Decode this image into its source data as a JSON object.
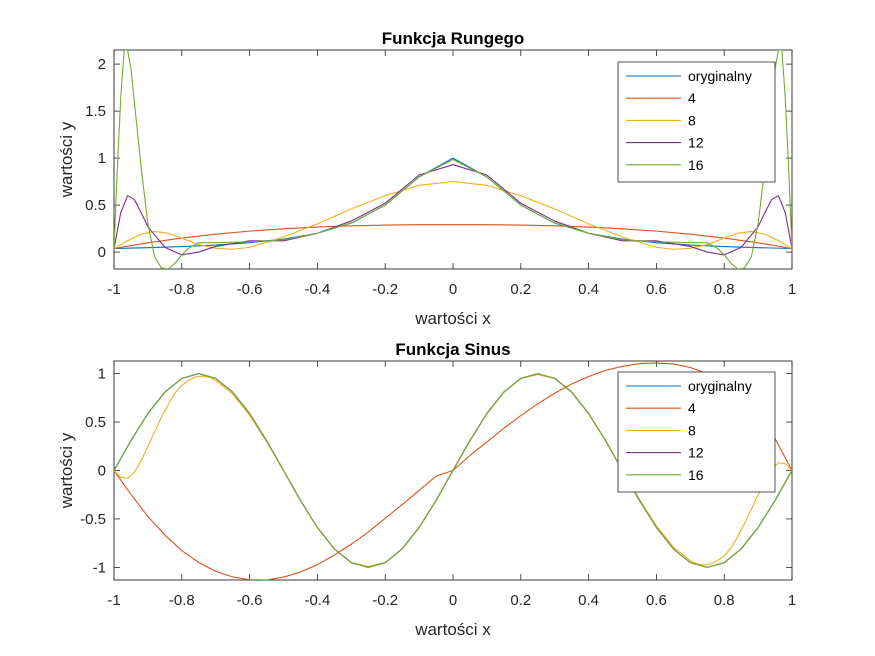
{
  "chart_data": [
    {
      "type": "line",
      "title": "Funkcja Rungego",
      "xlabel": "wartości x",
      "ylabel": "wartości y",
      "xlim": [
        -1,
        1
      ],
      "ylim": [
        -0.18,
        2.15
      ],
      "xticks": [
        -1,
        -0.8,
        -0.6,
        -0.4,
        -0.2,
        0,
        0.2,
        0.4,
        0.6,
        0.8,
        1
      ],
      "xtick_labels": [
        "-1",
        "-0.8",
        "-0.6",
        "-0.4",
        "-0.2",
        "0",
        "0.2",
        "0.4",
        "0.6",
        "0.8",
        "1"
      ],
      "yticks": [
        0,
        0.5,
        1,
        1.5,
        2
      ],
      "ytick_labels": [
        "0",
        "0.5",
        "1",
        "1.5",
        "2"
      ],
      "grid": false,
      "legend_position": "top-right",
      "series": [
        {
          "name": "oryginalny",
          "color": "#0072BD",
          "x": [
            -1,
            -0.9,
            -0.8,
            -0.7,
            -0.6,
            -0.5,
            -0.4,
            -0.3,
            -0.2,
            -0.1,
            0,
            0.1,
            0.2,
            0.3,
            0.4,
            0.5,
            0.6,
            0.7,
            0.8,
            0.9,
            1
          ],
          "y": [
            0.038,
            0.047,
            0.059,
            0.075,
            0.1,
            0.138,
            0.2,
            0.308,
            0.5,
            0.8,
            1.0,
            0.8,
            0.5,
            0.308,
            0.2,
            0.138,
            0.1,
            0.075,
            0.059,
            0.047,
            0.038
          ]
        },
        {
          "name": "4",
          "color": "#D95319",
          "x": [
            -1,
            -0.9,
            -0.8,
            -0.7,
            -0.6,
            -0.5,
            -0.4,
            -0.3,
            -0.2,
            -0.1,
            0,
            0.1,
            0.2,
            0.3,
            0.4,
            0.5,
            0.6,
            0.7,
            0.8,
            0.9,
            1
          ],
          "y": [
            0.038,
            0.099,
            0.149,
            0.19,
            0.223,
            0.248,
            0.266,
            0.279,
            0.287,
            0.291,
            0.292,
            0.291,
            0.287,
            0.279,
            0.266,
            0.248,
            0.223,
            0.19,
            0.149,
            0.099,
            0.038
          ]
        },
        {
          "name": "8",
          "color": "#EDB120",
          "x": [
            -1,
            -0.96,
            -0.92,
            -0.88,
            -0.84,
            -0.8,
            -0.75,
            -0.7,
            -0.65,
            -0.6,
            -0.5,
            -0.4,
            -0.3,
            -0.2,
            -0.1,
            0,
            0.1,
            0.2,
            0.3,
            0.4,
            0.5,
            0.6,
            0.65,
            0.7,
            0.75,
            0.8,
            0.84,
            0.88,
            0.92,
            0.96,
            1
          ],
          "y": [
            0.038,
            0.12,
            0.19,
            0.22,
            0.2,
            0.15,
            0.08,
            0.04,
            0.03,
            0.05,
            0.16,
            0.3,
            0.46,
            0.6,
            0.71,
            0.75,
            0.71,
            0.6,
            0.46,
            0.3,
            0.16,
            0.05,
            0.03,
            0.04,
            0.08,
            0.15,
            0.2,
            0.22,
            0.19,
            0.12,
            0.038
          ]
        },
        {
          "name": "12",
          "color": "#7E2F8E",
          "x": [
            -1,
            -0.98,
            -0.96,
            -0.94,
            -0.92,
            -0.9,
            -0.85,
            -0.8,
            -0.75,
            -0.7,
            -0.6,
            -0.5,
            -0.4,
            -0.3,
            -0.2,
            -0.1,
            0,
            0.1,
            0.2,
            0.3,
            0.4,
            0.5,
            0.6,
            0.7,
            0.75,
            0.8,
            0.85,
            0.9,
            0.92,
            0.94,
            0.96,
            0.98,
            1
          ],
          "y": [
            0.038,
            0.42,
            0.6,
            0.56,
            0.42,
            0.27,
            0.05,
            -0.03,
            0.0,
            0.06,
            0.12,
            0.12,
            0.2,
            0.33,
            0.52,
            0.82,
            0.93,
            0.82,
            0.52,
            0.33,
            0.2,
            0.12,
            0.12,
            0.06,
            0.0,
            -0.03,
            0.05,
            0.27,
            0.42,
            0.56,
            0.6,
            0.42,
            0.038
          ]
        },
        {
          "name": "16",
          "color": "#77AC30",
          "x": [
            -1,
            -0.99,
            -0.98,
            -0.97,
            -0.96,
            -0.95,
            -0.94,
            -0.92,
            -0.9,
            -0.88,
            -0.86,
            -0.84,
            -0.82,
            -0.8,
            -0.78,
            -0.75,
            -0.7,
            -0.6,
            -0.5,
            -0.4,
            -0.3,
            -0.2,
            -0.1,
            0,
            0.1,
            0.2,
            0.3,
            0.4,
            0.5,
            0.6,
            0.7,
            0.75,
            0.78,
            0.8,
            0.82,
            0.84,
            0.86,
            0.88,
            0.9,
            0.92,
            0.94,
            0.95,
            0.96,
            0.97,
            0.98,
            0.99,
            1
          ],
          "y": [
            0.038,
            0.9,
            1.65,
            2.15,
            2.15,
            1.95,
            1.6,
            0.9,
            0.3,
            -0.05,
            -0.17,
            -0.18,
            -0.12,
            -0.03,
            0.04,
            0.1,
            0.1,
            0.11,
            0.13,
            0.2,
            0.31,
            0.5,
            0.8,
            0.985,
            0.8,
            0.5,
            0.31,
            0.2,
            0.13,
            0.11,
            0.1,
            0.1,
            0.04,
            -0.03,
            -0.12,
            -0.18,
            -0.17,
            -0.05,
            0.3,
            0.9,
            1.6,
            1.95,
            2.15,
            2.15,
            1.65,
            0.9,
            0.038
          ]
        }
      ]
    },
    {
      "type": "line",
      "title": "Funkcja Sinus",
      "xlabel": "wartości x",
      "ylabel": "wartości y",
      "xlim": [
        -1,
        1
      ],
      "ylim": [
        -1.13,
        1.13
      ],
      "xticks": [
        -1,
        -0.8,
        -0.6,
        -0.4,
        -0.2,
        0,
        0.2,
        0.4,
        0.6,
        0.8,
        1
      ],
      "xtick_labels": [
        "-1",
        "-0.8",
        "-0.6",
        "-0.4",
        "-0.2",
        "0",
        "0.2",
        "0.4",
        "0.6",
        "0.8",
        "1"
      ],
      "yticks": [
        -1,
        -0.5,
        0,
        0.5,
        1
      ],
      "ytick_labels": [
        "-1",
        "-0.5",
        "0",
        "0.5",
        "1"
      ],
      "grid": false,
      "legend_position": "top-right",
      "series": [
        {
          "name": "oryginalny",
          "color": "#0072BD",
          "x": [
            -1,
            -0.95,
            -0.9,
            -0.85,
            -0.8,
            -0.75,
            -0.7,
            -0.65,
            -0.6,
            -0.55,
            -0.5,
            -0.45,
            -0.4,
            -0.35,
            -0.3,
            -0.25,
            -0.2,
            -0.15,
            -0.1,
            -0.05,
            0,
            0.05,
            0.1,
            0.15,
            0.2,
            0.25,
            0.3,
            0.35,
            0.4,
            0.45,
            0.5,
            0.55,
            0.6,
            0.65,
            0.7,
            0.75,
            0.8,
            0.85,
            0.9,
            0.95,
            1
          ],
          "y": [
            0,
            0.309,
            0.588,
            0.809,
            0.951,
            1,
            0.951,
            0.809,
            0.588,
            0.309,
            0,
            -0.309,
            -0.588,
            -0.809,
            -0.951,
            -1,
            -0.951,
            -0.809,
            -0.588,
            -0.309,
            0,
            0.309,
            0.588,
            0.809,
            0.951,
            1,
            0.951,
            0.809,
            0.588,
            0.309,
            0,
            -0.309,
            -0.588,
            -0.809,
            -0.951,
            -1,
            -0.951,
            -0.809,
            -0.588,
            -0.309,
            0
          ]
        },
        {
          "name": "4",
          "color": "#D95319",
          "x": [
            -1,
            -0.95,
            -0.9,
            -0.85,
            -0.8,
            -0.75,
            -0.7,
            -0.65,
            -0.6,
            -0.55,
            -0.5,
            -0.45,
            -0.4,
            -0.35,
            -0.3,
            -0.25,
            -0.2,
            -0.15,
            -0.1,
            -0.05,
            0,
            0.05,
            0.1,
            0.15,
            0.2,
            0.25,
            0.3,
            0.35,
            0.4,
            0.45,
            0.5,
            0.55,
            0.6,
            0.65,
            0.7,
            0.75,
            0.8,
            0.85,
            0.9,
            0.95,
            1
          ],
          "y": [
            0,
            -0.247,
            -0.475,
            -0.666,
            -0.826,
            -0.949,
            -1.041,
            -1.098,
            -1.128,
            -1.13,
            -1.1,
            -1.048,
            -0.972,
            -0.872,
            -0.76,
            -0.635,
            -0.494,
            -0.352,
            -0.206,
            -0.058,
            0,
            0.155,
            0.295,
            0.436,
            0.566,
            0.688,
            0.797,
            0.892,
            0.97,
            1.033,
            1.075,
            1.102,
            1.11,
            1.098,
            1.063,
            1.0,
            0.9,
            0.77,
            0.58,
            0.33,
            0
          ]
        },
        {
          "name": "8",
          "color": "#EDB120",
          "x": [
            -1,
            -0.98,
            -0.96,
            -0.94,
            -0.92,
            -0.9,
            -0.88,
            -0.86,
            -0.84,
            -0.82,
            -0.8,
            -0.78,
            -0.76,
            -0.74,
            -0.72,
            -0.7,
            -0.65,
            -0.6,
            -0.55,
            -0.5,
            -0.45,
            -0.4,
            -0.35,
            -0.3,
            -0.25,
            -0.2,
            -0.15,
            -0.1,
            -0.05,
            0,
            0.05,
            0.1,
            0.15,
            0.2,
            0.25,
            0.3,
            0.35,
            0.4,
            0.45,
            0.5,
            0.55,
            0.6,
            0.65,
            0.7,
            0.72,
            0.74,
            0.76,
            0.78,
            0.8,
            0.82,
            0.84,
            0.86,
            0.88,
            0.9,
            0.92,
            0.94,
            0.96,
            0.98,
            1
          ],
          "y": [
            0,
            -0.07,
            -0.08,
            -0.02,
            0.1,
            0.25,
            0.4,
            0.55,
            0.68,
            0.8,
            0.88,
            0.93,
            0.965,
            0.975,
            0.965,
            0.93,
            0.79,
            0.57,
            0.3,
            0,
            -0.31,
            -0.59,
            -0.81,
            -0.95,
            -0.99,
            -0.95,
            -0.81,
            -0.59,
            -0.31,
            0,
            0.31,
            0.59,
            0.81,
            0.95,
            0.99,
            0.95,
            0.81,
            0.59,
            0.31,
            0,
            -0.3,
            -0.57,
            -0.79,
            -0.93,
            -0.965,
            -0.975,
            -0.965,
            -0.93,
            -0.88,
            -0.8,
            -0.68,
            -0.55,
            -0.4,
            -0.25,
            -0.1,
            0.02,
            0.08,
            0.07,
            0
          ]
        },
        {
          "name": "12",
          "color": "#7E2F8E",
          "x": [
            -1,
            -0.95,
            -0.9,
            -0.85,
            -0.8,
            -0.75,
            -0.7,
            -0.65,
            -0.6,
            -0.55,
            -0.5,
            -0.45,
            -0.4,
            -0.35,
            -0.3,
            -0.25,
            -0.2,
            -0.15,
            -0.1,
            -0.05,
            0,
            0.05,
            0.1,
            0.15,
            0.2,
            0.25,
            0.3,
            0.35,
            0.4,
            0.45,
            0.5,
            0.55,
            0.6,
            0.65,
            0.7,
            0.75,
            0.8,
            0.85,
            0.9,
            0.95,
            1
          ],
          "y": [
            0,
            0.309,
            0.588,
            0.809,
            0.951,
            1,
            0.951,
            0.809,
            0.588,
            0.309,
            0,
            -0.309,
            -0.588,
            -0.809,
            -0.951,
            -1,
            -0.951,
            -0.809,
            -0.588,
            -0.309,
            0,
            0.309,
            0.588,
            0.809,
            0.951,
            1,
            0.951,
            0.809,
            0.588,
            0.309,
            0,
            -0.309,
            -0.588,
            -0.809,
            -0.951,
            -1,
            -0.951,
            -0.809,
            -0.588,
            -0.309,
            0
          ]
        },
        {
          "name": "16",
          "color": "#77AC30",
          "x": [
            -1,
            -0.95,
            -0.9,
            -0.85,
            -0.8,
            -0.75,
            -0.7,
            -0.65,
            -0.6,
            -0.55,
            -0.5,
            -0.45,
            -0.4,
            -0.35,
            -0.3,
            -0.25,
            -0.2,
            -0.15,
            -0.1,
            -0.05,
            0,
            0.05,
            0.1,
            0.15,
            0.2,
            0.25,
            0.3,
            0.35,
            0.4,
            0.45,
            0.5,
            0.55,
            0.6,
            0.65,
            0.7,
            0.75,
            0.8,
            0.85,
            0.9,
            0.95,
            1
          ],
          "y": [
            0,
            0.309,
            0.588,
            0.809,
            0.951,
            1,
            0.951,
            0.809,
            0.588,
            0.309,
            0,
            -0.309,
            -0.588,
            -0.809,
            -0.951,
            -1,
            -0.951,
            -0.809,
            -0.588,
            -0.309,
            0,
            0.309,
            0.588,
            0.809,
            0.951,
            1,
            0.951,
            0.809,
            0.588,
            0.309,
            0,
            -0.309,
            -0.588,
            -0.809,
            -0.951,
            -1,
            -0.951,
            -0.809,
            -0.588,
            -0.309,
            0
          ]
        }
      ]
    }
  ]
}
